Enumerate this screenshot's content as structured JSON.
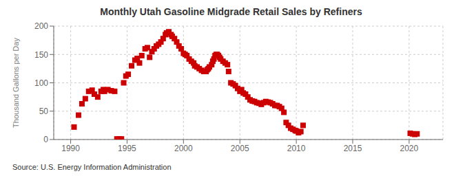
{
  "chart_data": {
    "type": "scatter",
    "title": "Monthly Utah Gasoline Midgrade Retail Sales by Refiners",
    "ylabel": "Thousand Gallons per Day",
    "annotations": [
      "Source: U.S. Energy Information Administration"
    ],
    "color": "#cc0000",
    "marker": "square",
    "grid": true,
    "xlim": [
      1988.5,
      2023
    ],
    "xticks": [
      1990,
      1995,
      2000,
      2005,
      2010,
      2015,
      2020
    ],
    "ylim": [
      0,
      200
    ],
    "yticks": [
      0,
      50,
      100,
      150,
      200
    ],
    "x": [
      1990.3,
      1990.7,
      1991.0,
      1991.3,
      1991.6,
      1991.9,
      1992.1,
      1992.4,
      1992.7,
      1992.9,
      1993.0,
      1993.3,
      1993.6,
      1993.9,
      1994.1,
      1994.3,
      1994.5,
      1994.7,
      1994.9,
      1995.1,
      1995.4,
      1995.7,
      1995.9,
      1996.1,
      1996.3,
      1996.6,
      1996.8,
      1997.0,
      1997.2,
      1997.4,
      1997.6,
      1997.8,
      1998.0,
      1998.2,
      1998.4,
      1998.5,
      1998.7,
      1998.9,
      1999.0,
      1999.2,
      1999.4,
      1999.6,
      1999.8,
      2000.0,
      2000.15,
      2000.3,
      2000.5,
      2000.7,
      2000.9,
      2001.0,
      2001.2,
      2001.4,
      2001.6,
      2001.8,
      2002.0,
      2002.1,
      2002.2,
      2002.3,
      2002.5,
      2002.6,
      2002.7,
      2002.8,
      2002.9,
      2003.0,
      2003.1,
      2003.2,
      2003.3,
      2003.5,
      2003.7,
      2003.9,
      2004.0,
      2004.2,
      2004.4,
      2004.6,
      2004.8,
      2005.0,
      2005.15,
      2005.3,
      2005.5,
      2005.7,
      2005.9,
      2006.1,
      2006.3,
      2006.5,
      2006.7,
      2006.9,
      2007.1,
      2007.3,
      2007.5,
      2007.7,
      2007.9,
      2008.1,
      2008.3,
      2008.5,
      2008.7,
      2008.9,
      2009.1,
      2009.3,
      2009.5,
      2009.7,
      2009.9,
      2010.0,
      2010.2,
      2010.4,
      2010.6,
      2020.1,
      2020.3,
      2020.5,
      2020.7
    ],
    "values": [
      22,
      43,
      63,
      72,
      85,
      87,
      80,
      75,
      85,
      88,
      85,
      88,
      86,
      85,
      1,
      1,
      1,
      100,
      112,
      115,
      130,
      140,
      143,
      135,
      148,
      160,
      162,
      145,
      155,
      160,
      165,
      168,
      172,
      178,
      185,
      188,
      190,
      185,
      182,
      178,
      172,
      165,
      160,
      152,
      150,
      148,
      142,
      138,
      135,
      130,
      128,
      125,
      122,
      120,
      120,
      123,
      125,
      128,
      132,
      138,
      142,
      148,
      150,
      150,
      148,
      145,
      142,
      138,
      135,
      132,
      120,
      100,
      98,
      95,
      90,
      85,
      88,
      82,
      80,
      75,
      70,
      68,
      67,
      65,
      64,
      62,
      65,
      67,
      66,
      65,
      63,
      60,
      60,
      58,
      55,
      48,
      30,
      25,
      20,
      18,
      16,
      15,
      12,
      14,
      25,
      11,
      10,
      9,
      10
    ]
  }
}
